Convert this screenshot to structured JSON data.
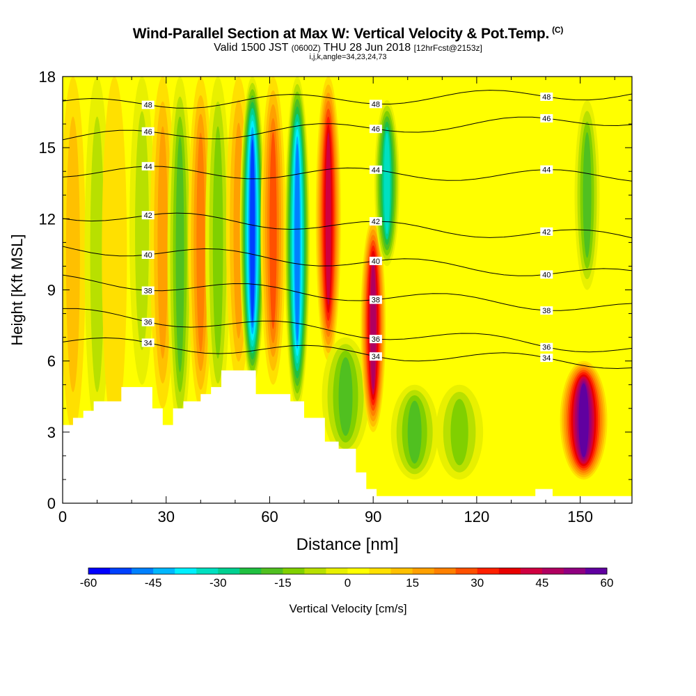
{
  "title": {
    "main": "Wind-Parallel Section at Max W: Vertical Velocity & Pot.Temp.",
    "copyright": "(C)",
    "valid_prefix": "Valid 1500 JST",
    "valid_utc": "(0600Z)",
    "valid_date": "THU 28 Jun 2018",
    "forecast": "[12hrFcst@2153z]",
    "indices": "i,j,k,angle=34,23,24,73"
  },
  "chart_data": {
    "type": "heatmap",
    "xlabel": "Distance [nm]",
    "ylabel": "Height [Kft MSL]",
    "xlim": [
      0,
      165
    ],
    "ylim": [
      0,
      18
    ],
    "x_ticks": [
      0,
      30,
      60,
      90,
      120,
      150
    ],
    "y_ticks": [
      0,
      3,
      6,
      9,
      12,
      15,
      18
    ],
    "colorbar": {
      "label": "Vertical Velocity [cm/s]",
      "range": [
        -60,
        60
      ],
      "tick_labels": [
        -60,
        -45,
        -30,
        -15,
        0,
        15,
        30,
        45,
        60
      ],
      "colors": [
        "#0000ff",
        "#0040ff",
        "#0080ff",
        "#00b7ff",
        "#00f0ff",
        "#00e0c0",
        "#00d090",
        "#20c040",
        "#50c020",
        "#80d000",
        "#b8e000",
        "#e8f000",
        "#ffff00",
        "#ffe000",
        "#ffc000",
        "#ffa000",
        "#ff8000",
        "#ff5000",
        "#ff2000",
        "#e80000",
        "#d00040",
        "#b00060",
        "#900080",
        "#6000a0"
      ]
    },
    "w_features": [
      {
        "x": 3,
        "z_bottom": 3,
        "z_top": 18,
        "w": 8
      },
      {
        "x": 10,
        "z_bottom": 3,
        "z_top": 18,
        "w": -8
      },
      {
        "x": 15,
        "z_bottom": 3,
        "z_top": 18,
        "w": 3
      },
      {
        "x": 23,
        "z_bottom": 5,
        "z_top": 18,
        "w": -10
      },
      {
        "x": 29,
        "z_bottom": 4,
        "z_top": 18,
        "w": 14
      },
      {
        "x": 34,
        "z_bottom": 3,
        "z_top": 18,
        "w": -20
      },
      {
        "x": 40,
        "z_bottom": 4,
        "z_top": 18,
        "w": 20
      },
      {
        "x": 45,
        "z_bottom": 4,
        "z_top": 18,
        "w": -15
      },
      {
        "x": 51,
        "z_bottom": 5,
        "z_top": 18,
        "w": 14
      },
      {
        "x": 55,
        "z_bottom": 5,
        "z_top": 18,
        "w": -55
      },
      {
        "x": 61,
        "z_bottom": 5,
        "z_top": 18,
        "w": 25
      },
      {
        "x": 68,
        "z_bottom": 4,
        "z_top": 18,
        "w": -50
      },
      {
        "x": 77,
        "z_bottom": 6,
        "z_top": 18,
        "w": 40
      },
      {
        "x": 82,
        "z_bottom": 2,
        "z_top": 7,
        "w": -18
      },
      {
        "x": 90,
        "z_bottom": 3,
        "z_top": 12,
        "w": 45
      },
      {
        "x": 94,
        "z_bottom": 10,
        "z_top": 17,
        "w": -35
      },
      {
        "x": 102,
        "z_bottom": 1,
        "z_top": 5,
        "w": -18
      },
      {
        "x": 115,
        "z_bottom": 1,
        "z_top": 5,
        "w": -14
      },
      {
        "x": 151,
        "z_bottom": 1,
        "z_top": 6,
        "w": 60
      },
      {
        "x": 152,
        "z_bottom": 9,
        "z_top": 17,
        "w": -20
      }
    ],
    "theta_contours": [
      {
        "label": "34",
        "z_left": 6.8,
        "z_right": 5.9
      },
      {
        "label": "36",
        "z_left": 8.0,
        "z_right": 6.5
      },
      {
        "label": "38",
        "z_left": 9.4,
        "z_right": 8.2
      },
      {
        "label": "40",
        "z_left": 10.8,
        "z_right": 9.6
      },
      {
        "label": "42",
        "z_left": 12.2,
        "z_right": 11.2
      },
      {
        "label": "44",
        "z_left": 14.0,
        "z_right": 13.8
      },
      {
        "label": "46",
        "z_left": 15.4,
        "z_right": 16.2
      },
      {
        "label": "48",
        "z_left": 16.8,
        "z_right": 17.3
      }
    ],
    "terrain": [
      [
        0,
        3.3
      ],
      [
        3,
        3.6
      ],
      [
        6,
        3.9
      ],
      [
        9,
        4.3
      ],
      [
        17,
        4.9
      ],
      [
        26,
        4.0
      ],
      [
        29,
        3.3
      ],
      [
        32,
        4.0
      ],
      [
        35,
        4.3
      ],
      [
        40,
        4.6
      ],
      [
        43,
        4.9
      ],
      [
        46,
        5.6
      ],
      [
        55,
        5.6
      ],
      [
        56,
        4.6
      ],
      [
        63,
        4.6
      ],
      [
        66,
        4.3
      ],
      [
        70,
        3.6
      ],
      [
        76,
        2.6
      ],
      [
        80,
        2.3
      ],
      [
        85,
        1.3
      ],
      [
        88,
        0.6
      ],
      [
        91,
        0.3
      ],
      [
        96,
        0.3
      ],
      [
        99,
        0.3
      ],
      [
        125,
        0.3
      ],
      [
        137,
        0.6
      ],
      [
        142,
        0.3
      ],
      [
        165,
        0.3
      ]
    ]
  }
}
